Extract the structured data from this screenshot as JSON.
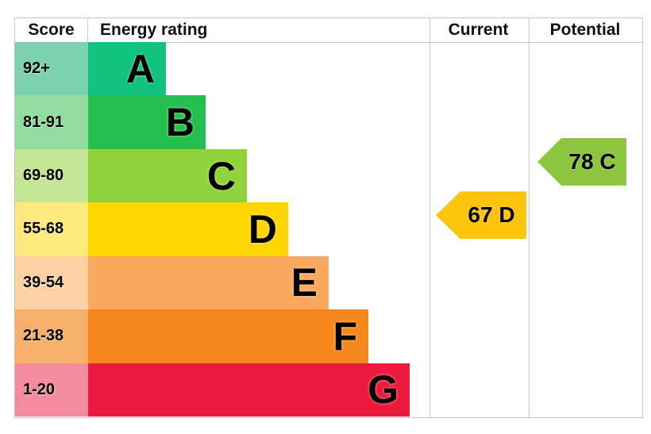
{
  "header": {
    "score": "Score",
    "energy_rating": "Energy rating",
    "current": "Current",
    "potential": "Potential"
  },
  "chart_data": {
    "type": "bar",
    "subtype": "epc-energy-rating",
    "title": "Energy rating",
    "columns": [
      "Score",
      "Energy rating",
      "Current",
      "Potential"
    ],
    "bands": [
      {
        "letter": "A",
        "score_range": "92+",
        "bar_color": "#11c17d",
        "score_bg_color": "#7cd2b0",
        "bar_width_pct": 22.8
      },
      {
        "letter": "B",
        "score_range": "81-91",
        "bar_color": "#24c04f",
        "score_bg_color": "#91dc9e",
        "bar_width_pct": 34.4
      },
      {
        "letter": "C",
        "score_range": "69-80",
        "bar_color": "#8ed33b",
        "score_bg_color": "#c4e593",
        "bar_width_pct": 46.5
      },
      {
        "letter": "D",
        "score_range": "55-68",
        "bar_color": "#ffd500",
        "score_bg_color": "#ffe97f",
        "bar_width_pct": 58.6
      },
      {
        "letter": "E",
        "score_range": "39-54",
        "bar_color": "#faa85e",
        "score_bg_color": "#fcd2a4",
        "bar_width_pct": 70.5
      },
      {
        "letter": "F",
        "score_range": "21-38",
        "bar_color": "#f5881d",
        "score_bg_color": "#f7b06c",
        "bar_width_pct": 82.1
      },
      {
        "letter": "G",
        "score_range": "1-20",
        "bar_color": "#ec1b3e",
        "score_bg_color": "#f48b9e",
        "bar_width_pct": 94.2
      }
    ],
    "current": {
      "score": 67,
      "band": "D",
      "label": "67 D",
      "arrow_color": "#fdc40d",
      "band_index": 3
    },
    "potential": {
      "score": 78,
      "band": "C",
      "label": "78 C",
      "arrow_color": "#8cc63f",
      "band_index": 2
    }
  }
}
